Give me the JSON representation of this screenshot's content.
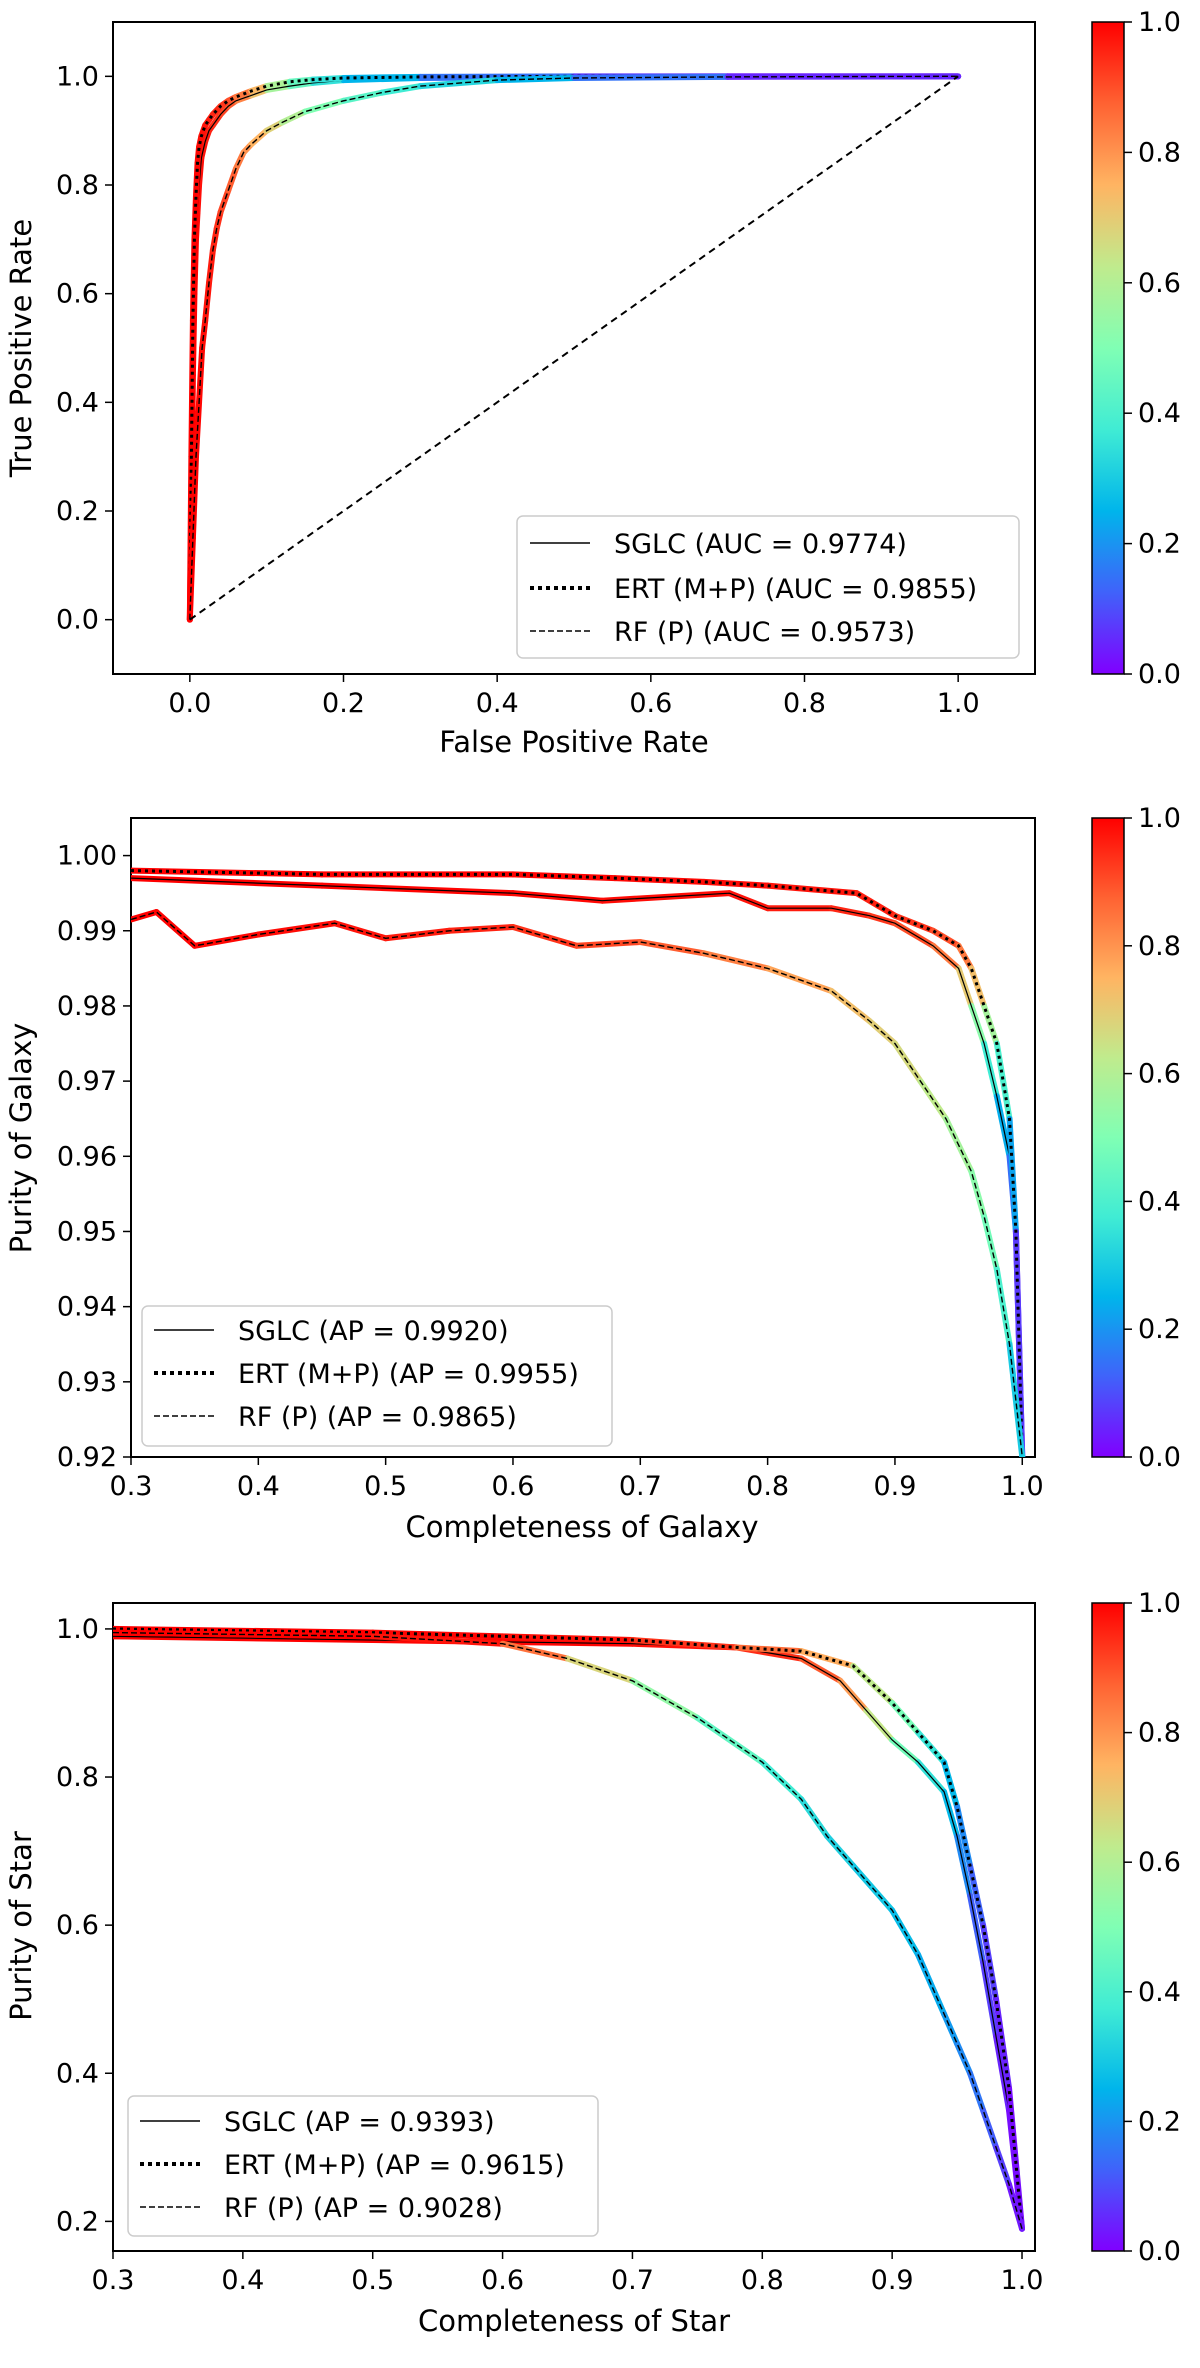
{
  "chart_data": [
    {
      "type": "line",
      "id": "roc",
      "title": "",
      "xlabel": "False Positive Rate",
      "ylabel": "True Positive Rate",
      "xlim": [
        -0.1,
        1.1
      ],
      "ylim": [
        -0.1,
        1.1
      ],
      "xticks": [
        0.0,
        0.2,
        0.4,
        0.6,
        0.8,
        1.0
      ],
      "yticks": [
        0.0,
        0.2,
        0.4,
        0.6,
        0.8,
        1.0
      ],
      "xtick_labels": [
        "0.0",
        "0.2",
        "0.4",
        "0.6",
        "0.8",
        "1.0"
      ],
      "ytick_labels": [
        "0.0",
        "0.2",
        "0.4",
        "0.6",
        "0.8",
        "1.0"
      ],
      "legend_position": "lower-right",
      "colorbar": {
        "label": "",
        "ticks": [
          0.0,
          0.2,
          0.4,
          0.6,
          0.8,
          1.0
        ],
        "tick_labels": [
          "0.0",
          "0.2",
          "0.4",
          "0.6",
          "0.8",
          "1.0"
        ],
        "colormap": "rainbow"
      },
      "series": [
        {
          "name": "SGLC (AUC = 0.9774)",
          "style": "solid",
          "x": [
            0.0,
            0.002,
            0.004,
            0.006,
            0.008,
            0.01,
            0.012,
            0.015,
            0.02,
            0.025,
            0.03,
            0.04,
            0.05,
            0.06,
            0.08,
            0.1,
            0.13,
            0.16,
            0.2,
            0.3,
            0.5,
            0.7,
            1.0
          ],
          "y": [
            0.0,
            0.2,
            0.45,
            0.6,
            0.7,
            0.75,
            0.8,
            0.85,
            0.88,
            0.9,
            0.91,
            0.93,
            0.945,
            0.955,
            0.965,
            0.975,
            0.982,
            0.988,
            0.993,
            0.997,
            0.999,
            1.0,
            1.0
          ],
          "thr": [
            1.0,
            1.0,
            1.0,
            1.0,
            0.99,
            0.99,
            0.98,
            0.98,
            0.97,
            0.96,
            0.95,
            0.93,
            0.9,
            0.87,
            0.78,
            0.65,
            0.5,
            0.4,
            0.3,
            0.2,
            0.1,
            0.05,
            0.0
          ]
        },
        {
          "name": "ERT (M+P) (AUC = 0.9855)",
          "style": "dotted",
          "x": [
            0.0,
            0.002,
            0.004,
            0.006,
            0.008,
            0.01,
            0.012,
            0.015,
            0.02,
            0.025,
            0.03,
            0.04,
            0.05,
            0.06,
            0.08,
            0.1,
            0.13,
            0.16,
            0.2,
            0.3,
            0.5,
            0.7,
            1.0
          ],
          "y": [
            0.0,
            0.3,
            0.55,
            0.7,
            0.78,
            0.84,
            0.87,
            0.89,
            0.91,
            0.92,
            0.93,
            0.945,
            0.955,
            0.962,
            0.973,
            0.982,
            0.99,
            0.994,
            0.997,
            0.999,
            1.0,
            1.0,
            1.0
          ],
          "thr": [
            1.0,
            1.0,
            1.0,
            1.0,
            1.0,
            0.99,
            0.99,
            0.98,
            0.98,
            0.97,
            0.96,
            0.94,
            0.92,
            0.88,
            0.8,
            0.68,
            0.5,
            0.4,
            0.3,
            0.2,
            0.1,
            0.05,
            0.0
          ]
        },
        {
          "name": "RF (P) (AUC = 0.9573)",
          "style": "dashed",
          "x": [
            0.0,
            0.004,
            0.008,
            0.012,
            0.016,
            0.02,
            0.025,
            0.03,
            0.035,
            0.04,
            0.05,
            0.06,
            0.07,
            0.08,
            0.1,
            0.12,
            0.15,
            0.2,
            0.25,
            0.3,
            0.4,
            0.5,
            0.7,
            1.0
          ],
          "y": [
            0.0,
            0.15,
            0.3,
            0.4,
            0.5,
            0.55,
            0.62,
            0.68,
            0.72,
            0.75,
            0.79,
            0.83,
            0.86,
            0.875,
            0.9,
            0.915,
            0.935,
            0.955,
            0.97,
            0.982,
            0.993,
            0.997,
            0.999,
            1.0
          ],
          "thr": [
            1.0,
            1.0,
            1.0,
            0.99,
            0.99,
            0.98,
            0.97,
            0.96,
            0.95,
            0.93,
            0.9,
            0.86,
            0.82,
            0.78,
            0.72,
            0.65,
            0.55,
            0.45,
            0.4,
            0.35,
            0.3,
            0.2,
            0.1,
            0.0
          ]
        },
        {
          "name": "",
          "style": "diagonal",
          "x": [
            0.0,
            1.0
          ],
          "y": [
            0.0,
            1.0
          ]
        }
      ]
    },
    {
      "type": "line",
      "id": "galaxy-pr",
      "title": "",
      "xlabel": "Completeness of Galaxy",
      "ylabel": "Purity of Galaxy",
      "xlim": [
        0.3,
        1.01
      ],
      "ylim": [
        0.92,
        1.005
      ],
      "xticks": [
        0.3,
        0.4,
        0.5,
        0.6,
        0.7,
        0.8,
        0.9,
        1.0
      ],
      "yticks": [
        0.92,
        0.93,
        0.94,
        0.95,
        0.96,
        0.97,
        0.98,
        0.99,
        1.0
      ],
      "xtick_labels": [
        "0.3",
        "0.4",
        "0.5",
        "0.6",
        "0.7",
        "0.8",
        "0.9",
        "1.0"
      ],
      "ytick_labels": [
        "0.92",
        "0.93",
        "0.94",
        "0.95",
        "0.96",
        "0.97",
        "0.98",
        "0.99",
        "1.00"
      ],
      "legend_position": "lower-left",
      "colorbar": {
        "label": "",
        "ticks": [
          0.0,
          0.2,
          0.4,
          0.6,
          0.8,
          1.0
        ],
        "tick_labels": [
          "0.0",
          "0.2",
          "0.4",
          "0.6",
          "0.8",
          "1.0"
        ],
        "colormap": "rainbow"
      },
      "series": [
        {
          "name": "SGLC (AP = 0.9920)",
          "style": "solid",
          "x": [
            0.3,
            0.45,
            0.6,
            0.67,
            0.77,
            0.8,
            0.85,
            0.88,
            0.9,
            0.93,
            0.95,
            0.96,
            0.97,
            0.98,
            0.99,
            0.995,
            1.0
          ],
          "y": [
            0.997,
            0.996,
            0.995,
            0.994,
            0.995,
            0.993,
            0.993,
            0.992,
            0.991,
            0.988,
            0.985,
            0.98,
            0.975,
            0.968,
            0.96,
            0.95,
            0.92
          ],
          "thr": [
            1.0,
            1.0,
            0.99,
            0.99,
            0.98,
            0.97,
            0.96,
            0.94,
            0.92,
            0.88,
            0.8,
            0.6,
            0.45,
            0.3,
            0.18,
            0.1,
            0.0
          ]
        },
        {
          "name": "ERT (M+P) (AP = 0.9955)",
          "style": "dotted",
          "x": [
            0.3,
            0.45,
            0.6,
            0.68,
            0.75,
            0.8,
            0.87,
            0.9,
            0.93,
            0.95,
            0.96,
            0.97,
            0.98,
            0.99,
            0.995,
            1.0
          ],
          "y": [
            0.998,
            0.9975,
            0.9975,
            0.997,
            0.9965,
            0.996,
            0.995,
            0.992,
            0.99,
            0.988,
            0.985,
            0.98,
            0.975,
            0.965,
            0.95,
            0.92
          ],
          "thr": [
            1.0,
            1.0,
            1.0,
            0.99,
            0.99,
            0.98,
            0.97,
            0.95,
            0.92,
            0.88,
            0.8,
            0.65,
            0.5,
            0.3,
            0.15,
            0.0
          ]
        },
        {
          "name": "RF (P) (AP = 0.9865)",
          "style": "dashed",
          "x": [
            0.3,
            0.32,
            0.35,
            0.4,
            0.46,
            0.5,
            0.55,
            0.6,
            0.65,
            0.7,
            0.75,
            0.8,
            0.85,
            0.88,
            0.9,
            0.92,
            0.94,
            0.96,
            0.97,
            0.98,
            0.99,
            1.0
          ],
          "y": [
            0.9915,
            0.9925,
            0.988,
            0.9895,
            0.991,
            0.989,
            0.99,
            0.9905,
            0.988,
            0.9885,
            0.987,
            0.985,
            0.982,
            0.978,
            0.975,
            0.97,
            0.965,
            0.958,
            0.952,
            0.945,
            0.935,
            0.92
          ],
          "thr": [
            1.0,
            1.0,
            0.99,
            0.99,
            0.98,
            0.97,
            0.96,
            0.95,
            0.92,
            0.9,
            0.86,
            0.8,
            0.75,
            0.7,
            0.68,
            0.65,
            0.6,
            0.55,
            0.5,
            0.45,
            0.35,
            0.25
          ]
        }
      ]
    },
    {
      "type": "line",
      "id": "star-pr",
      "title": "",
      "xlabel": "Completeness of Star",
      "ylabel": "Purity of Star",
      "xlim": [
        0.3,
        1.01
      ],
      "ylim": [
        0.16,
        1.035
      ],
      "xticks": [
        0.3,
        0.4,
        0.5,
        0.6,
        0.7,
        0.8,
        0.9,
        1.0
      ],
      "yticks": [
        0.2,
        0.4,
        0.6,
        0.8,
        1.0
      ],
      "xtick_labels": [
        "0.3",
        "0.4",
        "0.5",
        "0.6",
        "0.7",
        "0.8",
        "0.9",
        "1.0"
      ],
      "ytick_labels": [
        "0.2",
        "0.4",
        "0.6",
        "0.8",
        "1.0"
      ],
      "legend_position": "lower-left",
      "colorbar": {
        "label": "",
        "ticks": [
          0.0,
          0.2,
          0.4,
          0.6,
          0.8,
          1.0
        ],
        "tick_labels": [
          "0.0",
          "0.2",
          "0.4",
          "0.6",
          "0.8",
          "1.0"
        ],
        "colormap": "rainbow"
      },
      "series": [
        {
          "name": "SGLC (AP = 0.9393)",
          "style": "solid",
          "x": [
            0.3,
            0.5,
            0.7,
            0.78,
            0.83,
            0.86,
            0.88,
            0.9,
            0.92,
            0.94,
            0.95,
            0.96,
            0.97,
            0.98,
            0.99,
            1.0
          ],
          "y": [
            0.99,
            0.985,
            0.98,
            0.975,
            0.96,
            0.93,
            0.89,
            0.85,
            0.82,
            0.78,
            0.72,
            0.64,
            0.55,
            0.45,
            0.35,
            0.19
          ],
          "thr": [
            1.0,
            1.0,
            0.99,
            0.97,
            0.92,
            0.85,
            0.72,
            0.55,
            0.4,
            0.3,
            0.22,
            0.15,
            0.1,
            0.06,
            0.03,
            0.0
          ]
        },
        {
          "name": "ERT (M+P) (AP = 0.9615)",
          "style": "dotted",
          "x": [
            0.3,
            0.5,
            0.6,
            0.7,
            0.78,
            0.83,
            0.87,
            0.9,
            0.92,
            0.94,
            0.95,
            0.96,
            0.97,
            0.98,
            0.99,
            1.0
          ],
          "y": [
            1.0,
            0.995,
            0.99,
            0.985,
            0.975,
            0.97,
            0.95,
            0.9,
            0.86,
            0.82,
            0.76,
            0.68,
            0.6,
            0.5,
            0.38,
            0.19
          ],
          "thr": [
            1.0,
            1.0,
            0.99,
            0.97,
            0.9,
            0.82,
            0.7,
            0.55,
            0.42,
            0.3,
            0.22,
            0.15,
            0.1,
            0.06,
            0.03,
            0.0
          ]
        },
        {
          "name": "RF (P) (AP = 0.9028)",
          "style": "dashed",
          "x": [
            0.3,
            0.5,
            0.6,
            0.65,
            0.7,
            0.75,
            0.8,
            0.83,
            0.85,
            0.87,
            0.9,
            0.92,
            0.94,
            0.95,
            0.96,
            0.97,
            0.98,
            0.99,
            1.0
          ],
          "y": [
            0.995,
            0.99,
            0.98,
            0.96,
            0.93,
            0.88,
            0.82,
            0.77,
            0.72,
            0.68,
            0.62,
            0.56,
            0.48,
            0.44,
            0.4,
            0.35,
            0.3,
            0.25,
            0.19
          ],
          "thr": [
            1.0,
            1.0,
            0.95,
            0.75,
            0.6,
            0.48,
            0.4,
            0.35,
            0.32,
            0.3,
            0.28,
            0.25,
            0.22,
            0.2,
            0.17,
            0.14,
            0.1,
            0.06,
            0.0
          ]
        }
      ]
    }
  ]
}
